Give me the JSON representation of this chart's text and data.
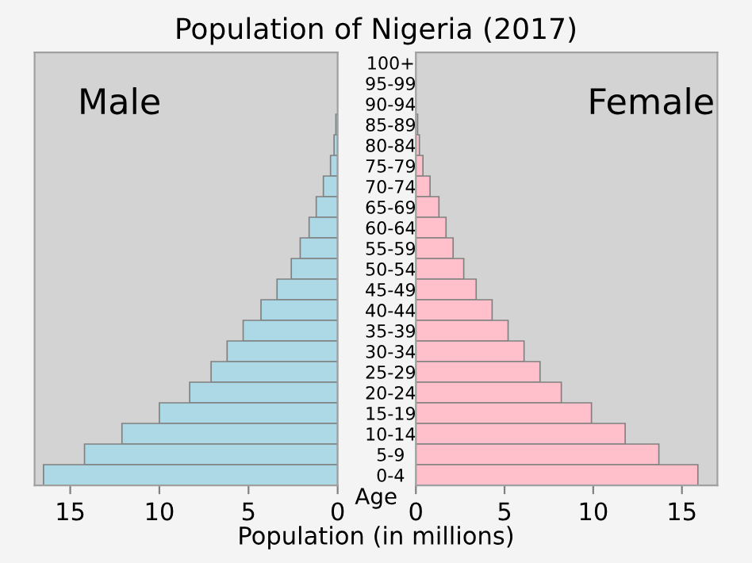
{
  "chart_data": [
    {
      "type": "bar",
      "orientation": "horizontal",
      "title": "Population of Nigeria (2017)",
      "xlabel": "Population (in millions)",
      "ylabel": "Age",
      "annotations": [
        "Male"
      ],
      "categories": [
        "100+",
        "95-99",
        "90-94",
        "85-89",
        "80-84",
        "75-79",
        "70-74",
        "65-69",
        "60-64",
        "55-59",
        "50-54",
        "45-49",
        "40-44",
        "35-39",
        "30-34",
        "25-29",
        "20-24",
        "15-19",
        "10-14",
        "5-9",
        "0-4"
      ],
      "values": [
        0,
        0,
        0,
        0.1,
        0.2,
        0.4,
        0.8,
        1.2,
        1.6,
        2.1,
        2.6,
        3.4,
        4.3,
        5.3,
        6.2,
        7.1,
        8.3,
        10.0,
        12.1,
        14.2,
        16.5
      ],
      "color": "#add8e6",
      "xlim": [
        17,
        0
      ],
      "xticks": [
        15,
        10,
        5,
        0
      ],
      "grid": false
    },
    {
      "type": "bar",
      "orientation": "horizontal",
      "annotations": [
        "Female"
      ],
      "tick_labels": "x",
      "values": [
        0,
        0,
        0,
        0.1,
        0.2,
        0.4,
        0.8,
        1.3,
        1.7,
        2.1,
        2.7,
        3.4,
        4.3,
        5.2,
        6.1,
        7.0,
        8.2,
        9.9,
        11.8,
        13.7,
        15.9
      ],
      "color": "#ffc0cb",
      "xlim": [
        0,
        17
      ],
      "xticks": [
        0,
        5,
        10,
        15
      ],
      "grid": false
    }
  ]
}
